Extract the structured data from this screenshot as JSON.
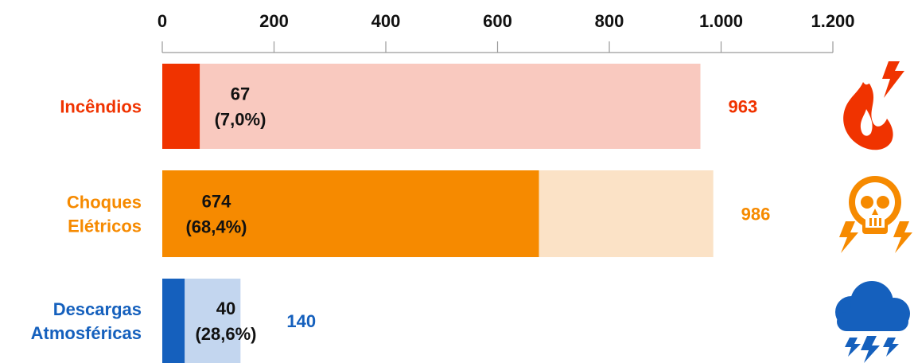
{
  "chart_data": {
    "type": "bar",
    "orientation": "horizontal",
    "xlim": [
      0,
      1200
    ],
    "ticks": [
      0,
      200,
      400,
      600,
      800,
      1000,
      1200
    ],
    "tick_labels": [
      "0",
      "200",
      "400",
      "600",
      "800",
      "1.000",
      "1.200"
    ],
    "categories": [
      {
        "label_lines": [
          "Incêndios"
        ],
        "total": 963,
        "part": 67,
        "total_label": "963",
        "part_label": "67",
        "pct_label": "(7,0%)",
        "color": "#f03300",
        "light_color": "#f9c9bf",
        "icon": "fire-lightning-icon"
      },
      {
        "label_lines": [
          "Choques",
          "Elétricos"
        ],
        "total": 986,
        "part": 674,
        "total_label": "986",
        "part_label": "674",
        "pct_label": "(68,4%)",
        "color": "#f68a00",
        "light_color": "#fbe2c6",
        "icon": "skull-lightning-icon"
      },
      {
        "label_lines": [
          "Descargas",
          "Atmosféricas"
        ],
        "total": 140,
        "part": 40,
        "total_label": "140",
        "part_label": "40",
        "pct_label": "(28,6%)",
        "color": "#1560bd",
        "light_color": "#c3d6ef",
        "icon": "storm-cloud-icon"
      }
    ]
  }
}
